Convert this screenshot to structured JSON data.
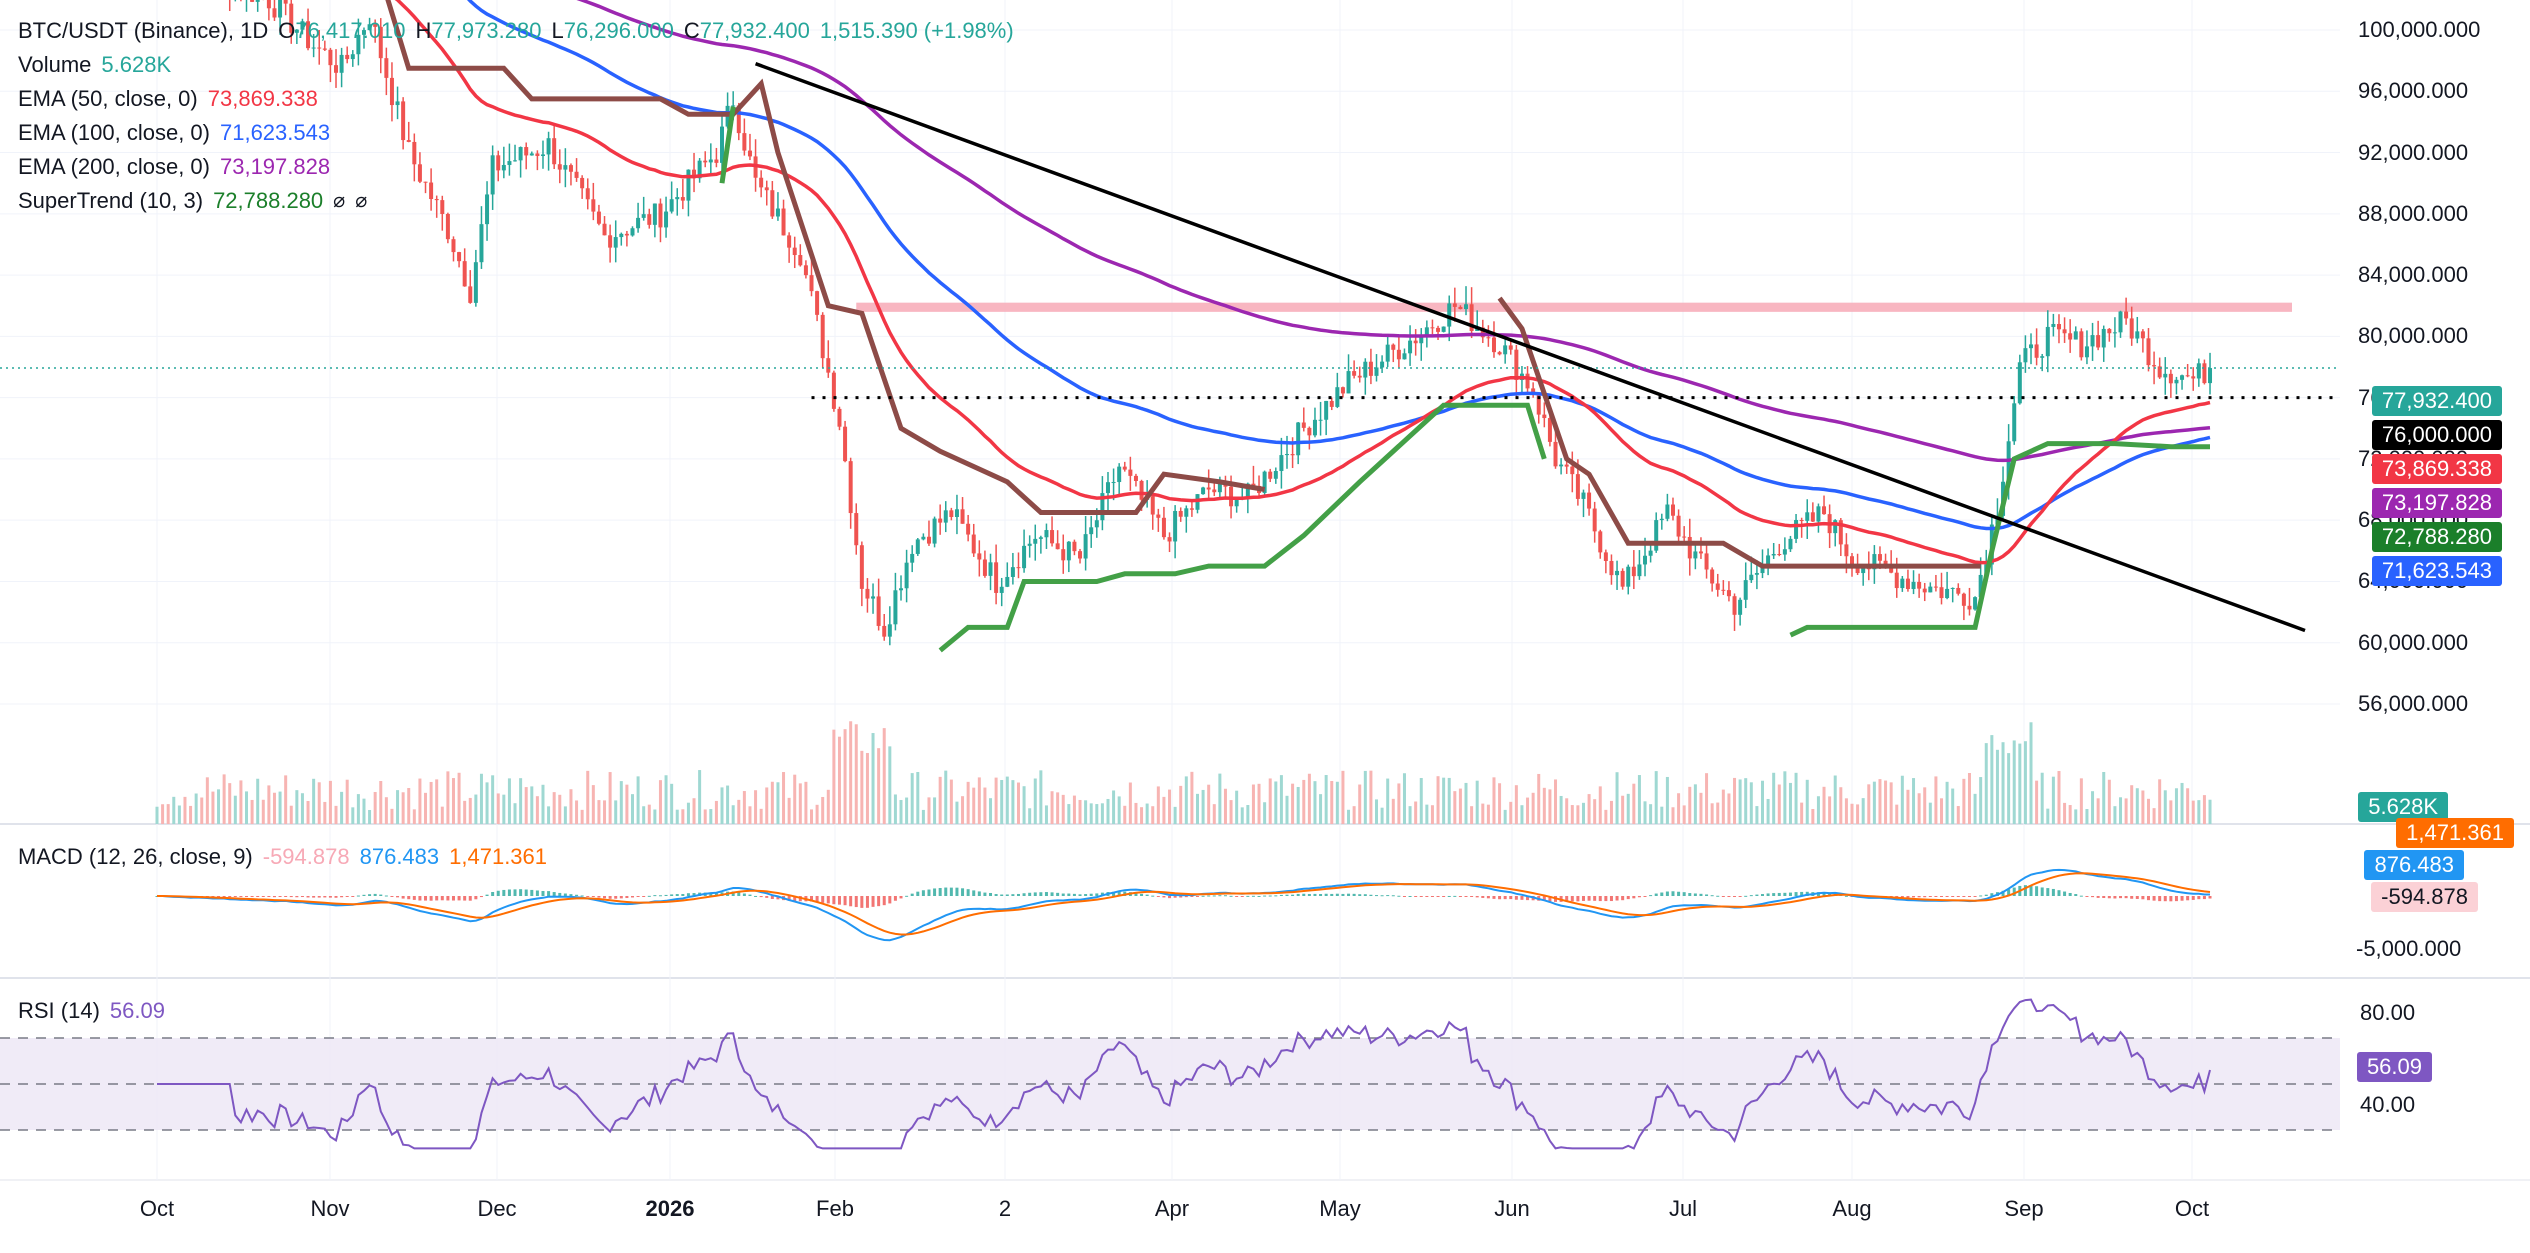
{
  "symbol": {
    "title": "BTC/USDT (Binance), 1D",
    "o_label": "O",
    "o_value": "76,417.010",
    "h_label": "H",
    "h_value": "77,973.280",
    "l_label": "L",
    "l_value": "76,296.000",
    "c_label": "C",
    "c_value": "77,932.400",
    "change": "1,515.390 (+1.98%)"
  },
  "indicators": {
    "volume": {
      "name": "Volume",
      "value": "5.628K"
    },
    "ema50": {
      "name": "EMA (50, close, 0)",
      "value": "73,869.338"
    },
    "ema100": {
      "name": "EMA (100, close, 0)",
      "value": "71,623.543"
    },
    "ema200": {
      "name": "EMA (200, close, 0)",
      "value": "73,197.828"
    },
    "supertrend": {
      "name": "SuperTrend (10, 3)",
      "value": "72,788.280",
      "icon1": "⌀",
      "icon2": "⌀"
    },
    "macd": {
      "name": "MACD (12, 26, close, 9)",
      "hist": "-594.878",
      "macd": "876.483",
      "signal": "1,471.361"
    },
    "rsi": {
      "name": "RSI (14)",
      "value": "56.09"
    }
  },
  "colors": {
    "up": "#26a69a",
    "down": "#ef5350",
    "ema50": "#f23645",
    "ema100": "#2962ff",
    "ema200": "#9c27b0",
    "st_up": "#43a047",
    "st_down": "#8d4b47",
    "trend": "#000000",
    "resistance": "#f7a9b6",
    "rsi": "#7e57c2",
    "macd": "#2196f3",
    "signal": "#ff6d00"
  },
  "price_axis": {
    "labels": [
      "100,000.000",
      "96,000.000",
      "92,000.000",
      "88,000.000",
      "84,000.000",
      "80,000.000",
      "76,000.000",
      "72,000.000",
      "68,000.000",
      "64,000.000",
      "60,000.000",
      "56,000.000"
    ]
  },
  "price_tags": {
    "close": "77,932.400",
    "level": "76,000.000",
    "ema50": "73,869.338",
    "ema200": "73,197.828",
    "supertrend": "72,788.280",
    "ema100": "71,623.543",
    "volume": "5.628K"
  },
  "macd_axis": {
    "labels": [
      "-5,000.000"
    ],
    "tags": {
      "signal": "1,471.361",
      "macd": "876.483",
      "hist": "-594.878"
    }
  },
  "rsi_axis": {
    "labels": [
      "80.00",
      "40.00"
    ],
    "tag": "56.09"
  },
  "time_axis": {
    "labels": [
      "Oct",
      "Nov",
      "Dec",
      "2026",
      "Feb",
      "2",
      "Apr",
      "May",
      "Jun",
      "Jul",
      "Aug",
      "Sep",
      "Oct"
    ],
    "bold": [
      "2026"
    ]
  },
  "chart_data": {
    "type": "line",
    "title": "BTC/USDT (Binance), 1D",
    "x_month_starts": [
      "Oct",
      "Nov",
      "Dec",
      "2026",
      "Feb",
      "2",
      "Apr",
      "May",
      "Jun",
      "Jul",
      "Aug",
      "Sep",
      "Oct"
    ],
    "ylim": [
      53000,
      102000
    ],
    "price_close_monthly_approx": [
      {
        "x": "Oct",
        "y": 104000
      },
      {
        "x": "Nov",
        "y": 96000
      },
      {
        "x": "Dec",
        "y": 87000
      },
      {
        "x": "2026",
        "y": 88500
      },
      {
        "x": "Feb",
        "y": 70000
      },
      {
        "x": "2",
        "y": 66000
      },
      {
        "x": "Apr",
        "y": 68000
      },
      {
        "x": "May",
        "y": 78500
      },
      {
        "x": "Jun",
        "y": 70000
      },
      {
        "x": "Jul",
        "y": 60000
      },
      {
        "x": "Aug",
        "y": 66000
      },
      {
        "x": "Sep",
        "y": 79500
      }
    ],
    "last_close": 77932.4,
    "ema_last": {
      "ema50": 73869.338,
      "ema100": 71623.543,
      "ema200": 73197.828
    },
    "supertrend_last": 72788.28,
    "horizontal_level": 76000,
    "resistance_zone": [
      81600,
      82200
    ],
    "trendline": {
      "from": {
        "x": "mid-Jan",
        "y": 97800
      },
      "to": {
        "x": "end-Sep",
        "y": 60800
      }
    },
    "volume_last": "5.628K",
    "macd_last": {
      "hist": -594.878,
      "macd": 876.483,
      "signal": 1471.361
    },
    "rsi_last": 56.09,
    "rsi_levels": [
      70,
      50,
      30
    ]
  }
}
